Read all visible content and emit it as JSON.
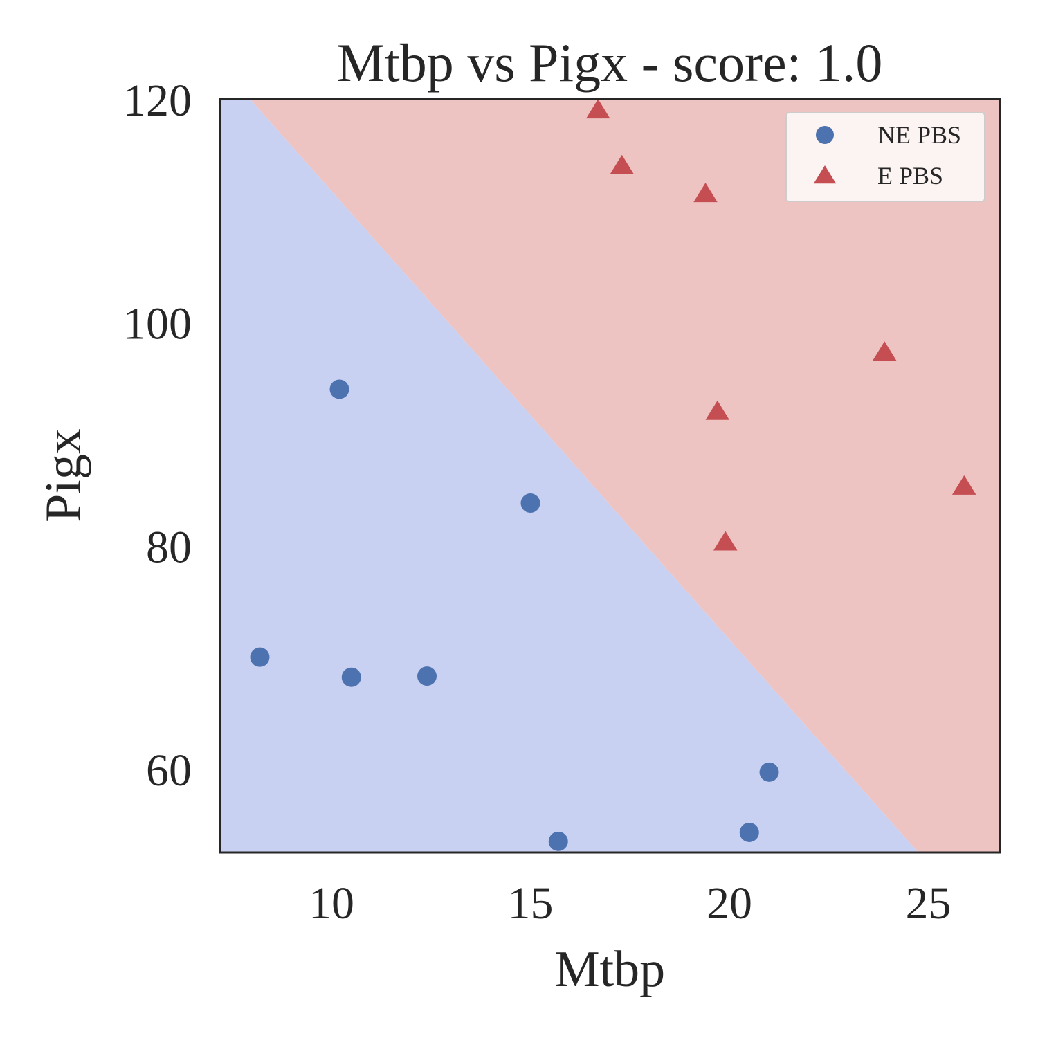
{
  "chart_data": {
    "type": "scatter",
    "title": "Mtbp vs Pigx - score: 1.0",
    "xlabel": "Mtbp",
    "ylabel": "Pigx",
    "xlim": [
      7.2,
      26.8
    ],
    "ylim": [
      52.5,
      120
    ],
    "xticks": [
      "10",
      "15",
      "20",
      "25"
    ],
    "yticks": [
      "60",
      "80",
      "100",
      "120"
    ],
    "grid": false,
    "legend_position": "top-right",
    "decision_boundary": {
      "line": [
        [
          7.95,
          120
        ],
        [
          24.75,
          52.5
        ]
      ],
      "region_below_color": "#c9d1f2",
      "region_above_color": "#eec4c3"
    },
    "series": [
      {
        "name": "NE PBS",
        "marker": "circle",
        "color": "#4c72b0",
        "points": [
          [
            8.2,
            70.0
          ],
          [
            10.2,
            94.0
          ],
          [
            10.5,
            68.2
          ],
          [
            12.4,
            68.3
          ],
          [
            15.0,
            83.8
          ],
          [
            15.7,
            53.5
          ],
          [
            20.5,
            54.3
          ],
          [
            21.0,
            59.7
          ]
        ]
      },
      {
        "name": "E PBS",
        "marker": "triangle",
        "color": "#c44e52",
        "points": [
          [
            16.7,
            119.0
          ],
          [
            17.3,
            114.0
          ],
          [
            19.4,
            111.5
          ],
          [
            19.7,
            92.0
          ],
          [
            19.9,
            80.3
          ],
          [
            23.9,
            97.3
          ],
          [
            25.9,
            85.3
          ]
        ]
      }
    ]
  }
}
